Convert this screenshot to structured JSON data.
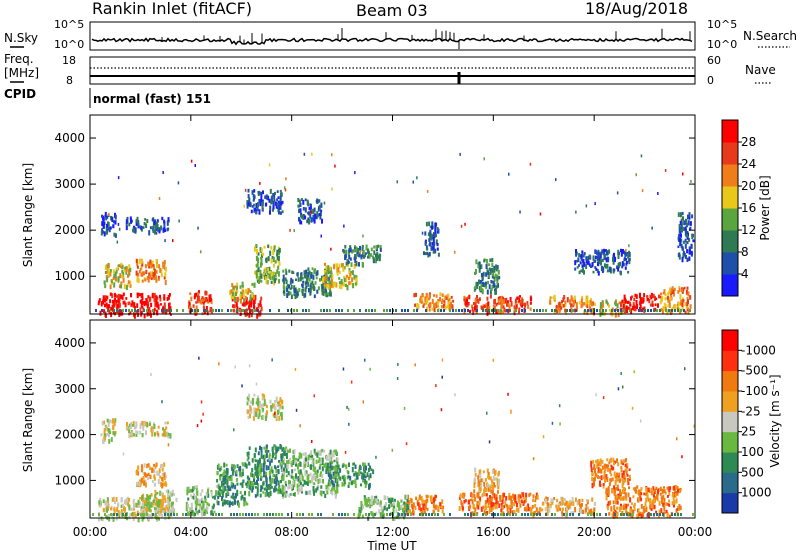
{
  "header": {
    "station": "Rankin Inlet (fitACF)",
    "beam": "Beam 03",
    "date": "18/Aug/2018"
  },
  "noise_panel": {
    "left_label": "N.Sky",
    "right_label": "N.Search",
    "left_ticks": [
      "10^5",
      "10^0"
    ],
    "right_ticks": [
      "10^5",
      "10^0"
    ]
  },
  "freq_panel": {
    "left_label_1": "Freq.",
    "left_label_2": "[MHz]",
    "right_label": "Nave",
    "left_ticks": [
      "18",
      "8"
    ],
    "right_ticks": [
      "60",
      "0"
    ]
  },
  "cpid_panel": {
    "label": "CPID",
    "mode": "normal (fast) 151"
  },
  "x_axis": {
    "label": "Time UT",
    "ticks": [
      "00:00",
      "04:00",
      "08:00",
      "12:00",
      "16:00",
      "20:00",
      "00:00"
    ]
  },
  "power_colorbar": {
    "label": "Power [dB]",
    "ticks": [
      "4",
      "8",
      "12",
      "16",
      "20",
      "24",
      "28"
    ],
    "colors": [
      "#1a1aff",
      "#1f4fa8",
      "#2e7a55",
      "#5aa53f",
      "#e8c81a",
      "#f07c1a",
      "#e83a1a",
      "#ff0000"
    ]
  },
  "velocity_colorbar": {
    "label": "Velocity [m s⁻¹]",
    "ticks": [
      "1000",
      "500",
      "100",
      "25",
      "-25",
      "-100",
      "-500",
      "-1000"
    ],
    "colors": [
      "#1a3aa8",
      "#2a6a8a",
      "#2e8a55",
      "#6ab83f",
      "#c8c8c0",
      "#f0a020",
      "#f07a10",
      "#ff3010",
      "#ff0000"
    ]
  },
  "chart_data": [
    {
      "type": "heatmap",
      "panel": "power",
      "ylabel": "Slant Range [km]",
      "xlim": [
        0,
        24
      ],
      "ylim": [
        180,
        4500
      ],
      "yticks": [
        1000,
        2000,
        3000,
        4000
      ],
      "scatter_regions": [
        {
          "x": [
            0.3,
            3.2
          ],
          "y": [
            180,
            650
          ],
          "level": 7
        },
        {
          "x": [
            1.8,
            3.0
          ],
          "y": [
            900,
            1400
          ],
          "level": 5
        },
        {
          "x": [
            0.5,
            1.6
          ],
          "y": [
            800,
            1300
          ],
          "level": 4
        },
        {
          "x": [
            3.8,
            4.8
          ],
          "y": [
            200,
            700
          ],
          "level": 6
        },
        {
          "x": [
            5.6,
            6.8
          ],
          "y": [
            180,
            600
          ],
          "level": 7
        },
        {
          "x": [
            5.5,
            6.5
          ],
          "y": [
            500,
            900
          ],
          "level": 4
        },
        {
          "x": [
            6.5,
            7.5
          ],
          "y": [
            900,
            1700
          ],
          "level": 3
        },
        {
          "x": [
            7.6,
            9.6
          ],
          "y": [
            600,
            1200
          ],
          "level": 2
        },
        {
          "x": [
            9.2,
            10.6
          ],
          "y": [
            800,
            1300
          ],
          "level": 4
        },
        {
          "x": [
            10.0,
            11.5
          ],
          "y": [
            1300,
            1700
          ],
          "level": 2
        },
        {
          "x": [
            0.4,
            1.0
          ],
          "y": [
            1900,
            2400
          ],
          "level": 1
        },
        {
          "x": [
            1.4,
            3.2
          ],
          "y": [
            2000,
            2300
          ],
          "level": 1
        },
        {
          "x": [
            6.2,
            7.6
          ],
          "y": [
            2400,
            2900
          ],
          "level": 1
        },
        {
          "x": [
            8.2,
            9.2
          ],
          "y": [
            2200,
            2700
          ],
          "level": 1
        },
        {
          "x": [
            12.8,
            14.4
          ],
          "y": [
            300,
            650
          ],
          "level": 5
        },
        {
          "x": [
            14.8,
            17.5
          ],
          "y": [
            250,
            600
          ],
          "level": 6
        },
        {
          "x": [
            18.2,
            20.0
          ],
          "y": [
            250,
            600
          ],
          "level": 5
        },
        {
          "x": [
            20.2,
            21.2
          ],
          "y": [
            200,
            500
          ],
          "level": 4
        },
        {
          "x": [
            21.0,
            22.6
          ],
          "y": [
            300,
            650
          ],
          "level": 7
        },
        {
          "x": [
            22.6,
            23.8
          ],
          "y": [
            250,
            800
          ],
          "level": 5
        },
        {
          "x": [
            19.2,
            21.4
          ],
          "y": [
            1100,
            1600
          ],
          "level": 1
        },
        {
          "x": [
            13.2,
            13.8
          ],
          "y": [
            1500,
            2200
          ],
          "level": 1
        },
        {
          "x": [
            15.2,
            16.2
          ],
          "y": [
            700,
            1400
          ],
          "level": 2
        },
        {
          "x": [
            23.3,
            23.9
          ],
          "y": [
            1400,
            2400
          ],
          "level": 1
        }
      ]
    },
    {
      "type": "heatmap",
      "panel": "velocity",
      "ylabel": "Slant Range [km]",
      "xlim": [
        0,
        24
      ],
      "ylim": [
        180,
        4500
      ],
      "yticks": [
        1000,
        2000,
        3000,
        4000
      ],
      "scatter_regions": [
        {
          "x": [
            0.3,
            3.2
          ],
          "y": [
            180,
            650
          ],
          "level": 4
        },
        {
          "x": [
            1.8,
            3.0
          ],
          "y": [
            900,
            1400
          ],
          "level": 5
        },
        {
          "x": [
            2.0,
            3.4
          ],
          "y": [
            250,
            800
          ],
          "level": 4
        },
        {
          "x": [
            3.8,
            5.0
          ],
          "y": [
            300,
            900
          ],
          "level": 3
        },
        {
          "x": [
            5.0,
            6.2
          ],
          "y": [
            500,
            1400
          ],
          "level": 2
        },
        {
          "x": [
            6.2,
            7.8
          ],
          "y": [
            700,
            1800
          ],
          "level": 2
        },
        {
          "x": [
            7.6,
            9.8
          ],
          "y": [
            700,
            1700
          ],
          "level": 3
        },
        {
          "x": [
            9.4,
            11.2
          ],
          "y": [
            900,
            1400
          ],
          "level": 2
        },
        {
          "x": [
            0.4,
            1.0
          ],
          "y": [
            1900,
            2400
          ],
          "level": 4
        },
        {
          "x": [
            1.4,
            3.2
          ],
          "y": [
            2000,
            2300
          ],
          "level": 4
        },
        {
          "x": [
            6.2,
            7.6
          ],
          "y": [
            2400,
            2900
          ],
          "level": 4
        },
        {
          "x": [
            12.4,
            14.0
          ],
          "y": [
            300,
            700
          ],
          "level": 6
        },
        {
          "x": [
            14.6,
            17.8
          ],
          "y": [
            300,
            750
          ],
          "level": 6
        },
        {
          "x": [
            17.8,
            20.0
          ],
          "y": [
            300,
            650
          ],
          "level": 5
        },
        {
          "x": [
            20.4,
            23.4
          ],
          "y": [
            250,
            900
          ],
          "level": 6
        },
        {
          "x": [
            19.8,
            21.4
          ],
          "y": [
            900,
            1500
          ],
          "level": 6
        },
        {
          "x": [
            10.6,
            12.6
          ],
          "y": [
            200,
            700
          ],
          "level": 3
        },
        {
          "x": [
            15.2,
            16.2
          ],
          "y": [
            700,
            1300
          ],
          "level": 5
        }
      ]
    }
  ]
}
